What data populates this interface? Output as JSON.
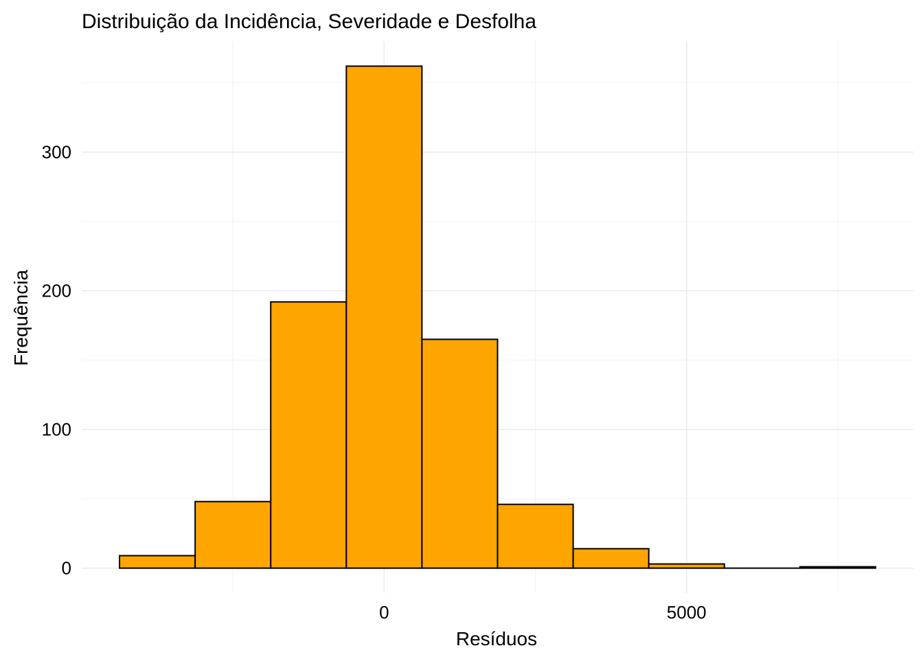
{
  "chart_data": {
    "type": "bar",
    "title": "Distribuição da Incidência, Severidade e Desfolha",
    "xlabel": "Resíduos",
    "ylabel": "Frequência",
    "bin_width": 1250,
    "bins": [
      {
        "start": -4375,
        "end": -3125,
        "count": 9
      },
      {
        "start": -3125,
        "end": -1875,
        "count": 48
      },
      {
        "start": -1875,
        "end": -625,
        "count": 192
      },
      {
        "start": -625,
        "end": 625,
        "count": 362
      },
      {
        "start": 625,
        "end": 1875,
        "count": 165
      },
      {
        "start": 1875,
        "end": 3125,
        "count": 46
      },
      {
        "start": 3125,
        "end": 4375,
        "count": 14
      },
      {
        "start": 4375,
        "end": 5625,
        "count": 3
      },
      {
        "start": 5625,
        "end": 6875,
        "count": 0
      },
      {
        "start": 6875,
        "end": 8125,
        "count": 1
      }
    ],
    "x_ticks": [
      0,
      5000
    ],
    "x_tick_labels": [
      "0",
      "5000"
    ],
    "x_minor_ticks": [
      -2500,
      2500,
      7500
    ],
    "y_ticks": [
      0,
      100,
      200,
      300
    ],
    "y_tick_labels": [
      "0",
      "100",
      "200",
      "300"
    ],
    "y_minor_ticks": [
      50,
      150,
      250,
      350
    ],
    "xlim": [
      -5000,
      8750
    ],
    "ylim": [
      -18,
      380
    ],
    "grid": true,
    "legend": "none",
    "colors": {
      "fill": "#FFA500",
      "outline": "#000000",
      "grid": "#ebebeb"
    }
  }
}
